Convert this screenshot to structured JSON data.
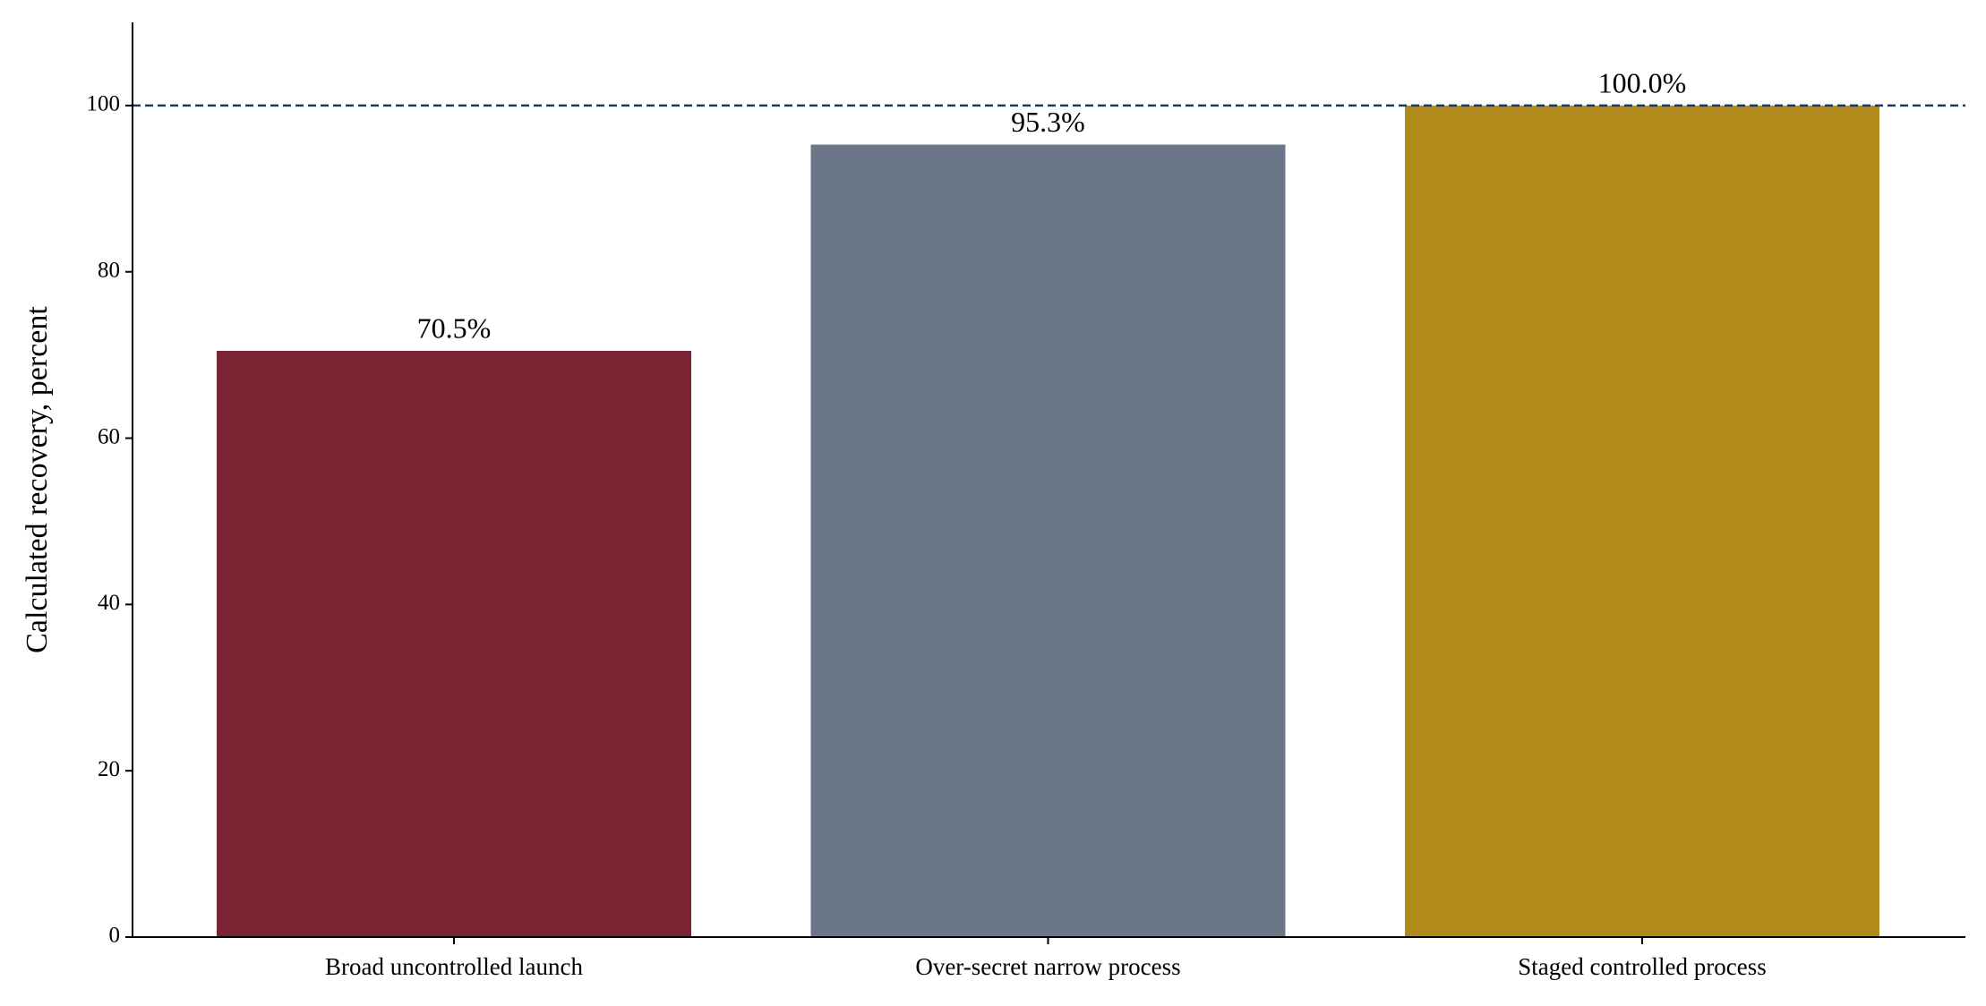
{
  "chart_data": {
    "type": "bar",
    "y_label": "Calculated recovery, percent",
    "categories": [
      "Broad uncontrolled launch",
      "Over-secret narrow process",
      "Staged controlled process"
    ],
    "values": [
      70.5,
      95.3,
      100.0
    ],
    "value_labels": [
      "70.5%",
      "95.3%",
      "100.0%"
    ],
    "colors": [
      "#7b2433",
      "#6b7688",
      "#b08a1a"
    ],
    "ylim": [
      0,
      110
    ],
    "yticks": [
      0,
      20,
      40,
      60,
      80,
      100
    ],
    "reference_line": {
      "value": 100,
      "color": "#1f3a5f"
    },
    "grid": false
  }
}
